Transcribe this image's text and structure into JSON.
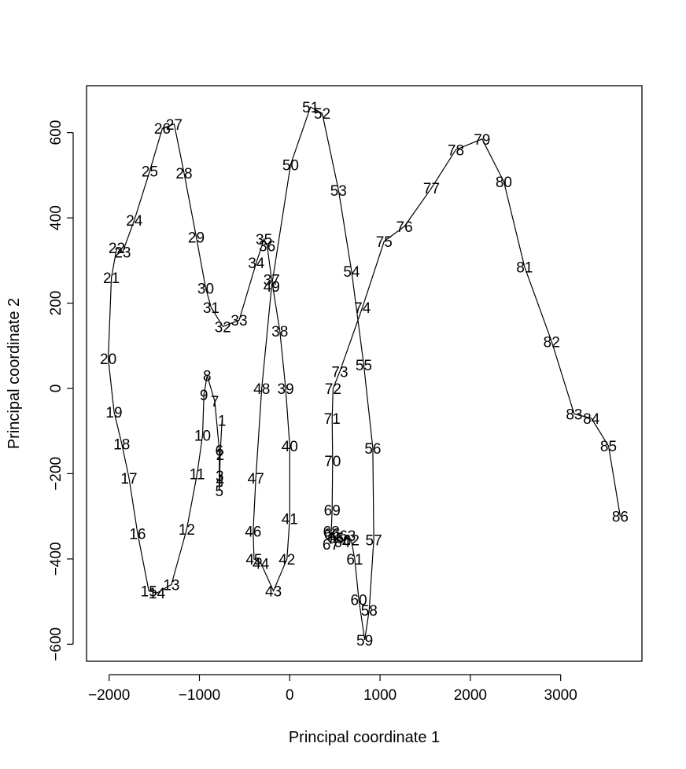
{
  "chart_data": {
    "type": "scatter",
    "xlabel": "Principal coordinate 1",
    "ylabel": "Principal coordinate 2",
    "xlim": [
      -2250,
      3900
    ],
    "ylim": [
      -640,
      710
    ],
    "xticks": [
      -2000,
      -1000,
      0,
      1000,
      2000,
      3000
    ],
    "yticks": [
      -600,
      -400,
      -200,
      0,
      200,
      400,
      600
    ],
    "xtick_labels": [
      "−2000",
      "−1000",
      "0",
      "1000",
      "2000",
      "3000"
    ],
    "ytick_labels": [
      "−600",
      "−400",
      "−200",
      "0",
      "200",
      "400",
      "600"
    ],
    "connected": true,
    "points": [
      {
        "label": "1",
        "x": -750,
        "y": -75
      },
      {
        "label": "2",
        "x": -770,
        "y": -155
      },
      {
        "label": "3",
        "x": -775,
        "y": -205
      },
      {
        "label": "4",
        "x": -770,
        "y": -215
      },
      {
        "label": "5",
        "x": -780,
        "y": -240
      },
      {
        "label": "6",
        "x": -780,
        "y": -145
      },
      {
        "label": "7",
        "x": -830,
        "y": -30
      },
      {
        "label": "8",
        "x": -915,
        "y": 30
      },
      {
        "label": "9",
        "x": -950,
        "y": -15
      },
      {
        "label": "10",
        "x": -965,
        "y": -110
      },
      {
        "label": "11",
        "x": -1025,
        "y": -200
      },
      {
        "label": "12",
        "x": -1140,
        "y": -330
      },
      {
        "label": "13",
        "x": -1310,
        "y": -460
      },
      {
        "label": "14",
        "x": -1470,
        "y": -480
      },
      {
        "label": "15",
        "x": -1560,
        "y": -475
      },
      {
        "label": "16",
        "x": -1685,
        "y": -340
      },
      {
        "label": "17",
        "x": -1780,
        "y": -210
      },
      {
        "label": "18",
        "x": -1860,
        "y": -130
      },
      {
        "label": "19",
        "x": -1945,
        "y": -55
      },
      {
        "label": "20",
        "x": -2010,
        "y": 70
      },
      {
        "label": "21",
        "x": -1975,
        "y": 260
      },
      {
        "label": "22",
        "x": -1915,
        "y": 330
      },
      {
        "label": "23",
        "x": -1850,
        "y": 320
      },
      {
        "label": "24",
        "x": -1720,
        "y": 395
      },
      {
        "label": "25",
        "x": -1550,
        "y": 510
      },
      {
        "label": "26",
        "x": -1410,
        "y": 610
      },
      {
        "label": "27",
        "x": -1280,
        "y": 620
      },
      {
        "label": "28",
        "x": -1170,
        "y": 505
      },
      {
        "label": "29",
        "x": -1035,
        "y": 355
      },
      {
        "label": "30",
        "x": -930,
        "y": 235
      },
      {
        "label": "31",
        "x": -870,
        "y": 190
      },
      {
        "label": "32",
        "x": -740,
        "y": 145
      },
      {
        "label": "33",
        "x": -560,
        "y": 160
      },
      {
        "label": "34",
        "x": -370,
        "y": 295
      },
      {
        "label": "35",
        "x": -285,
        "y": 350
      },
      {
        "label": "36",
        "x": -250,
        "y": 335
      },
      {
        "label": "37",
        "x": -200,
        "y": 255
      },
      {
        "label": "38",
        "x": -110,
        "y": 135
      },
      {
        "label": "39",
        "x": -45,
        "y": 0
      },
      {
        "label": "40",
        "x": 0,
        "y": -135
      },
      {
        "label": "41",
        "x": 0,
        "y": -305
      },
      {
        "label": "42",
        "x": -30,
        "y": -400
      },
      {
        "label": "43",
        "x": -180,
        "y": -475
      },
      {
        "label": "44",
        "x": -320,
        "y": -410
      },
      {
        "label": "45",
        "x": -395,
        "y": -400
      },
      {
        "label": "46",
        "x": -405,
        "y": -335
      },
      {
        "label": "47",
        "x": -375,
        "y": -210
      },
      {
        "label": "48",
        "x": -310,
        "y": 0
      },
      {
        "label": "49",
        "x": -200,
        "y": 240
      },
      {
        "label": "50",
        "x": 10,
        "y": 525
      },
      {
        "label": "51",
        "x": 230,
        "y": 660
      },
      {
        "label": "52",
        "x": 360,
        "y": 645
      },
      {
        "label": "53",
        "x": 540,
        "y": 465
      },
      {
        "label": "54",
        "x": 685,
        "y": 275
      },
      {
        "label": "55",
        "x": 820,
        "y": 55
      },
      {
        "label": "56",
        "x": 920,
        "y": -140
      },
      {
        "label": "57",
        "x": 930,
        "y": -355
      },
      {
        "label": "58",
        "x": 880,
        "y": -520
      },
      {
        "label": "59",
        "x": 830,
        "y": -590
      },
      {
        "label": "60",
        "x": 765,
        "y": -495
      },
      {
        "label": "61",
        "x": 720,
        "y": -400
      },
      {
        "label": "62",
        "x": 680,
        "y": -355
      },
      {
        "label": "63",
        "x": 640,
        "y": -345
      },
      {
        "label": "64",
        "x": 580,
        "y": -360
      },
      {
        "label": "65",
        "x": 510,
        "y": -350
      },
      {
        "label": "66",
        "x": 470,
        "y": -340
      },
      {
        "label": "67",
        "x": 455,
        "y": -365
      },
      {
        "label": "68",
        "x": 460,
        "y": -335
      },
      {
        "label": "69",
        "x": 470,
        "y": -285
      },
      {
        "label": "70",
        "x": 475,
        "y": -170
      },
      {
        "label": "71",
        "x": 470,
        "y": -70
      },
      {
        "label": "72",
        "x": 480,
        "y": 0
      },
      {
        "label": "73",
        "x": 555,
        "y": 40
      },
      {
        "label": "74",
        "x": 805,
        "y": 190
      },
      {
        "label": "75",
        "x": 1045,
        "y": 345
      },
      {
        "label": "76",
        "x": 1270,
        "y": 380
      },
      {
        "label": "77",
        "x": 1570,
        "y": 470
      },
      {
        "label": "78",
        "x": 1840,
        "y": 560
      },
      {
        "label": "79",
        "x": 2130,
        "y": 585
      },
      {
        "label": "80",
        "x": 2370,
        "y": 485
      },
      {
        "label": "81",
        "x": 2600,
        "y": 285
      },
      {
        "label": "82",
        "x": 2900,
        "y": 110
      },
      {
        "label": "83",
        "x": 3150,
        "y": -60
      },
      {
        "label": "84",
        "x": 3340,
        "y": -70
      },
      {
        "label": "85",
        "x": 3530,
        "y": -135
      },
      {
        "label": "86",
        "x": 3660,
        "y": -300
      }
    ]
  }
}
